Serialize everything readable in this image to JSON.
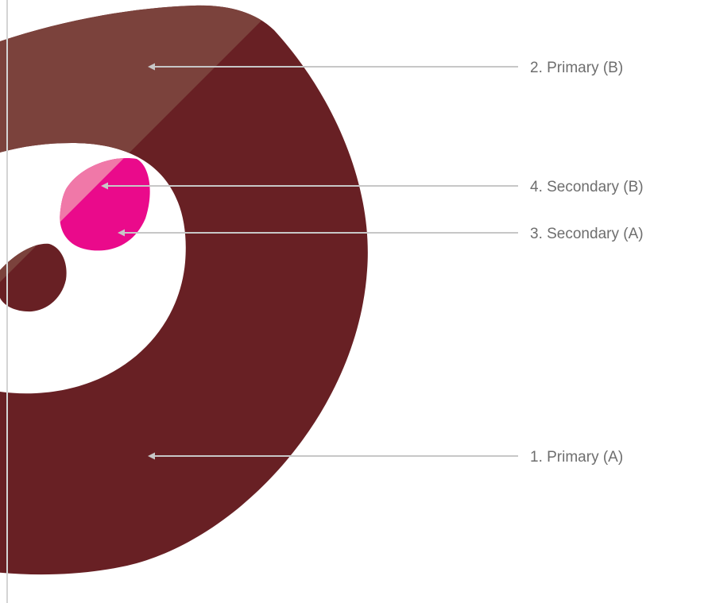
{
  "colors": {
    "primary_a": "#682024",
    "primary_b": "#7b423c",
    "secondary_a": "#ea0a8b",
    "secondary_b": "#f078a8",
    "background": "#ffffff",
    "leader_line": "#c7c7c7",
    "label_text": "#6e6e6e",
    "left_rule": "#d4d4d4"
  },
  "callouts": {
    "primary_b": {
      "label": "2. Primary (B)"
    },
    "secondary_b": {
      "label": "4. Secondary (B)"
    },
    "secondary_a": {
      "label": "3. Secondary (A)"
    },
    "primary_a": {
      "label": "1. Primary (A)"
    }
  }
}
